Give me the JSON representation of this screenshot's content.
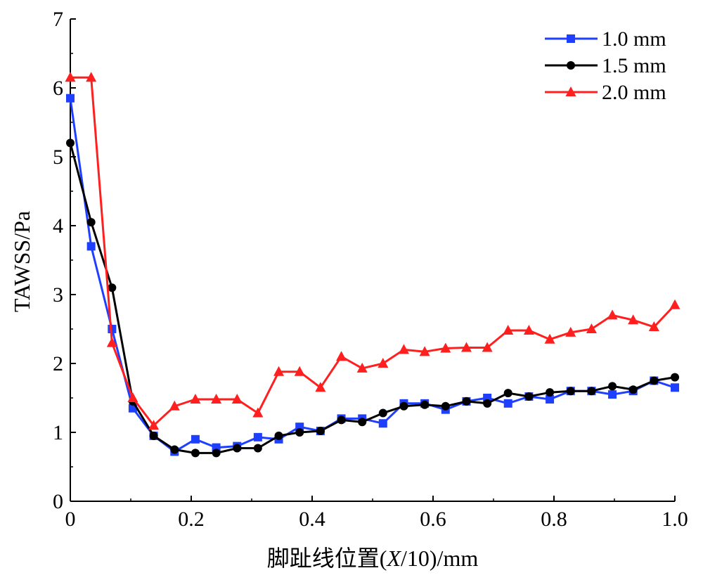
{
  "chart_data": {
    "type": "line",
    "title": "",
    "xlabel": "脚趾线位置(X/10)/mm",
    "xlabel_parts": {
      "prefix": "脚趾线位置(",
      "italic": "X",
      "suffix": "/10)/mm"
    },
    "ylabel": "TAWSS/Pa",
    "xlim": [
      0,
      1.0
    ],
    "ylim": [
      0,
      7
    ],
    "xticks": [
      0,
      0.2,
      0.4,
      0.6,
      0.8,
      1.0
    ],
    "xtick_labels": [
      "0",
      "0.2",
      "0.4",
      "0.6",
      "0.8",
      "1.0"
    ],
    "yticks": [
      0,
      1,
      2,
      3,
      4,
      5,
      6,
      7
    ],
    "ytick_labels": [
      "0",
      "1",
      "2",
      "3",
      "4",
      "5",
      "6",
      "7"
    ],
    "legend_position": "top-right",
    "series": [
      {
        "name": "1.0 mm",
        "color": "#1f3fff",
        "marker": "square",
        "x": [
          0.0,
          0.0345,
          0.069,
          0.1034,
          0.1379,
          0.1724,
          0.2069,
          0.2414,
          0.2759,
          0.3103,
          0.3448,
          0.3793,
          0.4138,
          0.4483,
          0.4828,
          0.5172,
          0.5517,
          0.5862,
          0.6207,
          0.6552,
          0.6897,
          0.7241,
          0.7586,
          0.7931,
          0.8276,
          0.8621,
          0.8966,
          0.931,
          0.9655,
          1.0
        ],
        "values": [
          5.85,
          3.7,
          2.5,
          1.35,
          0.95,
          0.72,
          0.9,
          0.78,
          0.8,
          0.93,
          0.9,
          1.08,
          1.02,
          1.2,
          1.2,
          1.13,
          1.42,
          1.42,
          1.33,
          1.45,
          1.5,
          1.42,
          1.52,
          1.48,
          1.6,
          1.6,
          1.55,
          1.6,
          1.75,
          1.65
        ]
      },
      {
        "name": "1.5 mm",
        "color": "#000000",
        "marker": "circle",
        "x": [
          0.0,
          0.0345,
          0.069,
          0.1034,
          0.1379,
          0.1724,
          0.2069,
          0.2414,
          0.2759,
          0.3103,
          0.3448,
          0.3793,
          0.4138,
          0.4483,
          0.4828,
          0.5172,
          0.5517,
          0.5862,
          0.6207,
          0.6552,
          0.6897,
          0.7241,
          0.7586,
          0.7931,
          0.8276,
          0.8621,
          0.8966,
          0.931,
          0.9655,
          1.0
        ],
        "values": [
          5.2,
          4.05,
          3.1,
          1.45,
          0.95,
          0.75,
          0.7,
          0.7,
          0.77,
          0.77,
          0.95,
          1.0,
          1.02,
          1.18,
          1.15,
          1.28,
          1.38,
          1.4,
          1.38,
          1.45,
          1.42,
          1.57,
          1.52,
          1.58,
          1.6,
          1.6,
          1.67,
          1.62,
          1.75,
          1.8
        ]
      },
      {
        "name": "2.0 mm",
        "color": "#ff1f1f",
        "marker": "triangle",
        "x": [
          0.0,
          0.0345,
          0.069,
          0.1034,
          0.1379,
          0.1724,
          0.2069,
          0.2414,
          0.2759,
          0.3103,
          0.3448,
          0.3793,
          0.4138,
          0.4483,
          0.4828,
          0.5172,
          0.5517,
          0.5862,
          0.6207,
          0.6552,
          0.6897,
          0.7241,
          0.7586,
          0.7931,
          0.8276,
          0.8621,
          0.8966,
          0.931,
          0.9655,
          1.0
        ],
        "values": [
          6.15,
          6.15,
          2.3,
          1.5,
          1.1,
          1.38,
          1.48,
          1.48,
          1.48,
          1.28,
          1.88,
          1.88,
          1.65,
          2.1,
          1.93,
          2.0,
          2.2,
          2.17,
          2.22,
          2.23,
          2.23,
          2.48,
          2.48,
          2.35,
          2.45,
          2.5,
          2.7,
          2.63,
          2.53,
          2.85
        ]
      }
    ]
  }
}
